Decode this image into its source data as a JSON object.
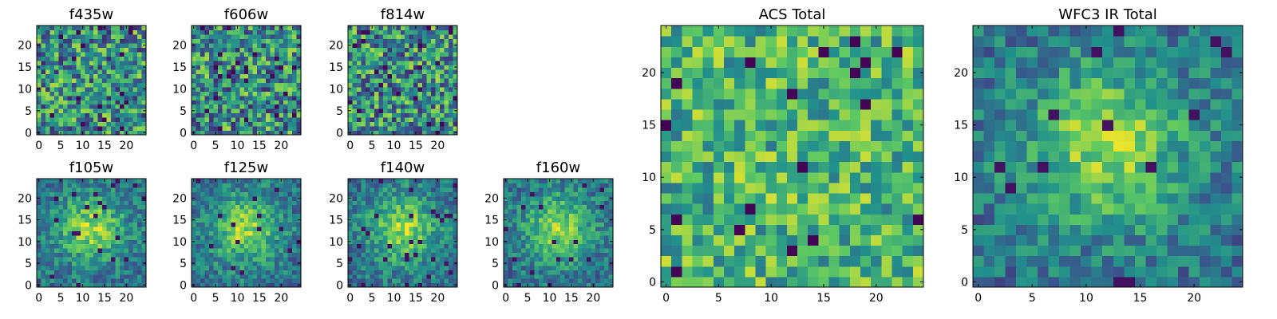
{
  "figure": {
    "colormap": "viridis",
    "colormap_stops": [
      "#440154",
      "#3b528b",
      "#21918c",
      "#5ec962",
      "#fde725"
    ],
    "frame_color": "#000000"
  },
  "chart_data": [
    {
      "type": "heatmap",
      "title": "f435w",
      "grid_size": [
        25,
        25
      ],
      "xticks": [
        "0",
        "5",
        "10",
        "15",
        "20"
      ],
      "yticks": [
        "0",
        "5",
        "10",
        "15",
        "20"
      ],
      "xlim": [
        -0.5,
        24.5
      ],
      "ylim": [
        -0.5,
        24.5
      ],
      "pattern": "noise",
      "seed": 11
    },
    {
      "type": "heatmap",
      "title": "f606w",
      "grid_size": [
        25,
        25
      ],
      "xticks": [
        "0",
        "5",
        "10",
        "15",
        "20"
      ],
      "yticks": [
        "0",
        "5",
        "10",
        "15",
        "20"
      ],
      "xlim": [
        -0.5,
        24.5
      ],
      "ylim": [
        -0.5,
        24.5
      ],
      "pattern": "noise",
      "seed": 23
    },
    {
      "type": "heatmap",
      "title": "f814w",
      "grid_size": [
        25,
        25
      ],
      "xticks": [
        "0",
        "5",
        "10",
        "15",
        "20"
      ],
      "yticks": [
        "0",
        "5",
        "10",
        "15",
        "20"
      ],
      "xlim": [
        -0.5,
        24.5
      ],
      "ylim": [
        -0.5,
        24.5
      ],
      "pattern": "noise",
      "seed": 37
    },
    {
      "type": "heatmap",
      "title": "f105w",
      "grid_size": [
        25,
        25
      ],
      "xticks": [
        "0",
        "5",
        "10",
        "15",
        "20"
      ],
      "yticks": [
        "0",
        "5",
        "10",
        "15",
        "20"
      ],
      "xlim": [
        -0.5,
        24.5
      ],
      "ylim": [
        -0.5,
        24.5
      ],
      "pattern": "source",
      "seed": 41
    },
    {
      "type": "heatmap",
      "title": "f125w",
      "grid_size": [
        25,
        25
      ],
      "xticks": [
        "0",
        "5",
        "10",
        "15",
        "20"
      ],
      "yticks": [
        "0",
        "5",
        "10",
        "15",
        "20"
      ],
      "xlim": [
        -0.5,
        24.5
      ],
      "ylim": [
        -0.5,
        24.5
      ],
      "pattern": "source",
      "seed": 53
    },
    {
      "type": "heatmap",
      "title": "f140w",
      "grid_size": [
        25,
        25
      ],
      "xticks": [
        "0",
        "5",
        "10",
        "15",
        "20"
      ],
      "yticks": [
        "0",
        "5",
        "10",
        "15",
        "20"
      ],
      "xlim": [
        -0.5,
        24.5
      ],
      "ylim": [
        -0.5,
        24.5
      ],
      "pattern": "source",
      "seed": 67
    },
    {
      "type": "heatmap",
      "title": "f160w",
      "grid_size": [
        25,
        25
      ],
      "xticks": [
        "0",
        "5",
        "10",
        "15",
        "20"
      ],
      "yticks": [
        "0",
        "5",
        "10",
        "15",
        "20"
      ],
      "xlim": [
        -0.5,
        24.5
      ],
      "ylim": [
        -0.5,
        24.5
      ],
      "pattern": "source",
      "seed": 79
    },
    {
      "type": "heatmap",
      "title": "ACS Total",
      "grid_size": [
        25,
        25
      ],
      "xticks": [
        "0",
        "5",
        "10",
        "15",
        "20"
      ],
      "yticks": [
        "0",
        "5",
        "10",
        "15",
        "20"
      ],
      "xlim": [
        -0.5,
        24.5
      ],
      "ylim": [
        -0.5,
        24.5
      ],
      "pattern": "bright_noise",
      "seed": 89
    },
    {
      "type": "heatmap",
      "title": "WFC3 IR Total",
      "grid_size": [
        25,
        25
      ],
      "xticks": [
        "0",
        "5",
        "10",
        "15",
        "20"
      ],
      "yticks": [
        "0",
        "5",
        "10",
        "15",
        "20"
      ],
      "xlim": [
        -0.5,
        24.5
      ],
      "ylim": [
        -0.5,
        24.5
      ],
      "pattern": "source",
      "seed": 97
    }
  ]
}
